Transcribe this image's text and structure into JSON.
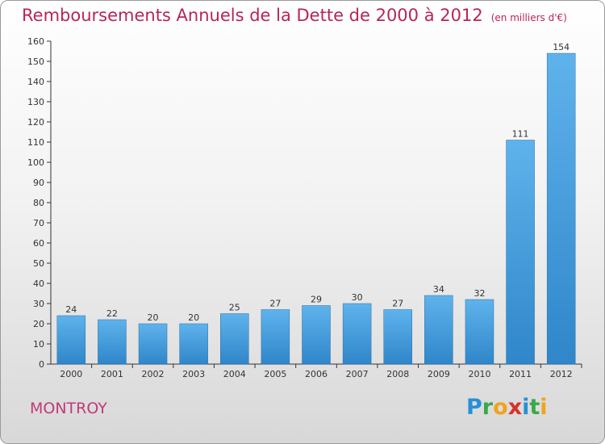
{
  "title": "Remboursements Annuels de la Dette de 2000 à 2012",
  "unit": "(en milliers d'€)",
  "commune": "MONTROY",
  "brand": {
    "letters": [
      "P",
      "r",
      "o",
      "x",
      "i",
      "t",
      "i"
    ],
    "colors": [
      "#2a8fd6",
      "#3aa84c",
      "#f0a31c",
      "#d6322a",
      "#2a8fd6",
      "#3aa84c",
      "#f0a31c"
    ]
  },
  "colors": {
    "bar": "#3d95d8",
    "bar_light": "#5fb3ec",
    "title": "#b8245a"
  },
  "chart_data": {
    "type": "bar",
    "categories": [
      "2000",
      "2001",
      "2002",
      "2003",
      "2004",
      "2005",
      "2006",
      "2007",
      "2008",
      "2009",
      "2010",
      "2011",
      "2012"
    ],
    "values": [
      24,
      22,
      20,
      20,
      25,
      27,
      29,
      30,
      27,
      34,
      32,
      111,
      154
    ],
    "ylim": [
      0,
      160
    ],
    "yticks": [
      0,
      10,
      20,
      30,
      40,
      50,
      60,
      70,
      80,
      90,
      100,
      110,
      120,
      130,
      140,
      150,
      160
    ],
    "grid": false
  }
}
